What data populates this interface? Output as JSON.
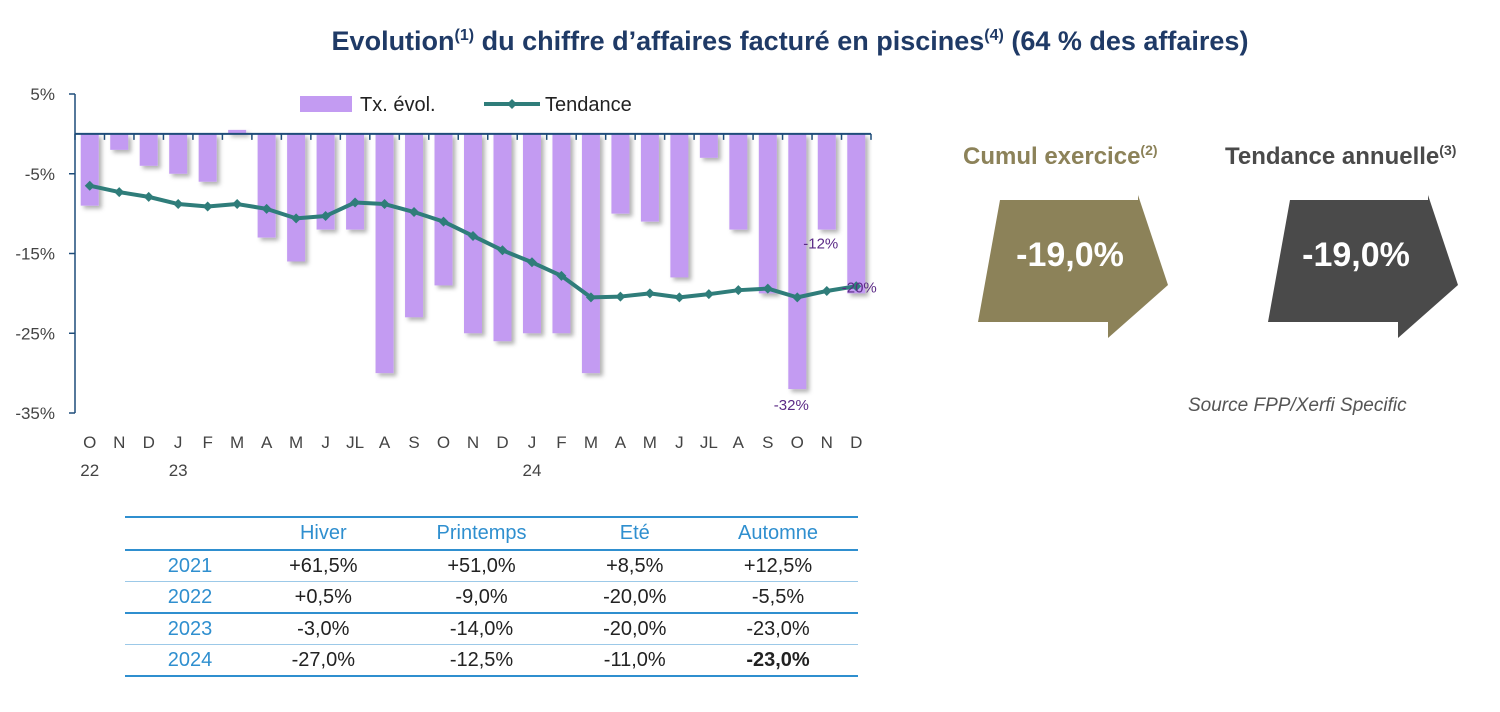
{
  "title": {
    "text_a": "Evolution",
    "sup_a": "(1)",
    "text_b": " du chiffre d’affaires facturé en piscines",
    "sup_b": "(4)",
    "text_c": " (64 % des affaires)"
  },
  "chart_data": {
    "type": "bar",
    "legend": {
      "bar_label": "Tx. évol.",
      "line_label": "Tendance",
      "position": "top-center"
    },
    "y_ticks": [
      "5%",
      "-5%",
      "-15%",
      "-25%",
      "-35%"
    ],
    "ylim": [
      -35,
      5
    ],
    "categories": [
      "O",
      "N",
      "D",
      "J",
      "F",
      "M",
      "A",
      "M",
      "J",
      "JL",
      "A",
      "S",
      "O",
      "N",
      "D",
      "J",
      "F",
      "M",
      "A",
      "M",
      "J",
      "JL",
      "A",
      "S",
      "O",
      "N",
      "D"
    ],
    "year_labels": [
      {
        "index": 0,
        "label": "22"
      },
      {
        "index": 3,
        "label": "23"
      },
      {
        "index": 15,
        "label": "24"
      }
    ],
    "series": [
      {
        "name": "Tx. évol.",
        "type": "bar",
        "values": [
          -9,
          -2,
          -4,
          -5,
          -6,
          0.5,
          -13,
          -16,
          -12,
          -12,
          -30,
          -23,
          -19,
          -25,
          -26,
          -25,
          -25,
          -30,
          -10,
          -11,
          -18,
          -3,
          -12,
          -20,
          -32,
          -12,
          -20
        ]
      },
      {
        "name": "Tendance",
        "type": "line",
        "values": [
          -6.5,
          -7.3,
          -7.9,
          -8.8,
          -9.1,
          -8.8,
          -9.4,
          -10.6,
          -10.3,
          -8.6,
          -8.8,
          -9.8,
          -11,
          -12.8,
          -14.6,
          -16.1,
          -17.8,
          -20.5,
          -20.4,
          -20,
          -20.5,
          -20.1,
          -19.6,
          -19.4,
          -20.5,
          -19.7,
          -19.1
        ]
      }
    ],
    "data_labels": [
      {
        "index": 24,
        "text": "-32%"
      },
      {
        "index": 25,
        "text": "-12%"
      },
      {
        "index": 26,
        "text": "-20%"
      }
    ]
  },
  "kpis": {
    "cumul": {
      "label": "Cumul exercice",
      "sup": "(2)",
      "value": "-19,0%",
      "color": "#8c8259"
    },
    "tendance": {
      "label": "Tendance annuelle",
      "sup": "(3)",
      "value": "-19,0%",
      "color": "#4a4a4a"
    }
  },
  "source": "Source FPP/Xerfi Specific",
  "table": {
    "headers": [
      "",
      "Hiver",
      "Printemps",
      "Eté",
      "Automne"
    ],
    "rows": [
      {
        "year": "2021",
        "values": [
          "+61,5%",
          "+51,0%",
          "+8,5%",
          "+12,5%"
        ]
      },
      {
        "year": "2022",
        "values": [
          "+0,5%",
          "-9,0%",
          "-20,0%",
          "-5,5%"
        ]
      },
      {
        "year": "2023",
        "values": [
          "-3,0%",
          "-14,0%",
          "-20,0%",
          "-23,0%"
        ]
      },
      {
        "year": "2024",
        "values": [
          "-27,0%",
          "-12,5%",
          "-11,0%",
          "-23,0%"
        ]
      }
    ]
  },
  "colors": {
    "bar": "#c39bf2",
    "line": "#2f7d7a",
    "axis": "#1f4d7a",
    "label": "#5b2a86",
    "title": "#1f3a66"
  }
}
